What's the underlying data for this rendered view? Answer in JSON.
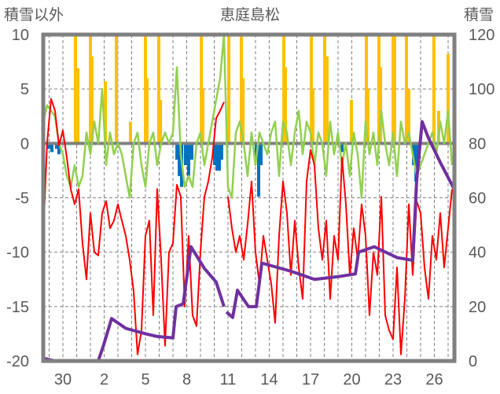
{
  "chart_data": {
    "type": "bar",
    "title": "恵庭島松",
    "ylabel_left": "積雪以外",
    "ylabel_right": "積雪",
    "ylim_left": [
      -20,
      10
    ],
    "ylim_right": [
      0,
      120
    ],
    "xlim_days": [
      -1.43,
      28.46
    ],
    "x_unit_note": "days, 0 = tick labelled 30",
    "left_ticks": [
      "10",
      "5",
      "0",
      "-5",
      "-10",
      "-15",
      "-20"
    ],
    "left_tick_values": [
      10,
      5,
      0,
      -5,
      -10,
      -15,
      -20
    ],
    "right_ticks": [
      "120",
      "100",
      "80",
      "60",
      "40",
      "20",
      "0"
    ],
    "right_tick_values": [
      120,
      100,
      80,
      60,
      40,
      20,
      0
    ],
    "x_ticks": [
      "30",
      "2",
      "5",
      "8",
      "11",
      "14",
      "17",
      "20",
      "23",
      "26"
    ],
    "x_tick_days": [
      0,
      3,
      6,
      9,
      12,
      15,
      18,
      21,
      24,
      27
    ],
    "grid": true,
    "colors": {
      "orange": "#FFC000",
      "blue": "#0070C0",
      "green": "#92D050",
      "red": "#FF0000",
      "purple": "#7030A0",
      "frame": "#808080"
    },
    "series": [
      {
        "name": "orange-bars",
        "axis": "left",
        "type": "bar",
        "points": [
          [
            0.91,
            12
          ],
          [
            1.09,
            6.9
          ],
          [
            2.0,
            12
          ],
          [
            2.11,
            8
          ],
          [
            3.09,
            5.7
          ],
          [
            3.89,
            12
          ],
          [
            4.91,
            2
          ],
          [
            6.0,
            12
          ],
          [
            6.11,
            6
          ],
          [
            6.97,
            12
          ],
          [
            7.09,
            4
          ],
          [
            10.06,
            12
          ],
          [
            10.17,
            5
          ],
          [
            12.06,
            12
          ],
          [
            12.97,
            12
          ],
          [
            13.09,
            6
          ],
          [
            16.06,
            12
          ],
          [
            16.17,
            7
          ],
          [
            18.06,
            12
          ],
          [
            18.17,
            5
          ],
          [
            19.03,
            12
          ],
          [
            19.2,
            8
          ],
          [
            20.97,
            4
          ],
          [
            22.06,
            12
          ],
          [
            22.17,
            5
          ],
          [
            22.97,
            12
          ],
          [
            23.09,
            7
          ],
          [
            24.0,
            12
          ],
          [
            24.11,
            12
          ],
          [
            24.97,
            12
          ],
          [
            25.14,
            5
          ],
          [
            26.97,
            12
          ],
          [
            27.31,
            3
          ],
          [
            28.0,
            8.2
          ]
        ]
      },
      {
        "name": "blue-bars",
        "axis": "left",
        "type": "bar",
        "points": [
          [
            -1.03,
            -0.5
          ],
          [
            -0.8,
            -0.8
          ],
          [
            -0.46,
            -0.5
          ],
          [
            -0.29,
            -1
          ],
          [
            8.29,
            -1.5
          ],
          [
            8.46,
            -3
          ],
          [
            8.63,
            -4
          ],
          [
            8.91,
            -2
          ],
          [
            9.14,
            -3
          ],
          [
            9.37,
            -1.5
          ],
          [
            11.03,
            -2
          ],
          [
            11.2,
            -2.5
          ],
          [
            11.37,
            -2.5
          ],
          [
            11.54,
            -1.5
          ],
          [
            14.06,
            -1.5
          ],
          [
            14.23,
            -4.9
          ],
          [
            14.4,
            -2
          ],
          [
            20.29,
            -0.8
          ],
          [
            25.49,
            -2
          ],
          [
            25.66,
            -3.5
          ],
          [
            25.83,
            -1
          ]
        ]
      },
      {
        "name": "green-line",
        "axis": "left",
        "type": "line",
        "x_start": -1.43,
        "x_step": 0.2857,
        "values": [
          2,
          3.5,
          3,
          2.5,
          0,
          -1,
          -3,
          -4,
          -2,
          -4,
          -3,
          1,
          -1,
          2,
          0,
          5,
          -2,
          1,
          -1,
          0,
          -1,
          -3,
          -5,
          0,
          1,
          -2,
          -4,
          0,
          1,
          -2,
          0,
          1,
          0,
          1,
          7,
          -1,
          -4,
          -3,
          -4,
          0,
          1,
          -2,
          0,
          2,
          4,
          6,
          10,
          -4,
          -5,
          1,
          2,
          0,
          -3,
          1,
          -2,
          1,
          0,
          -1,
          1,
          2,
          -3,
          2,
          1,
          -2,
          1,
          3,
          -1,
          2,
          1,
          -2,
          1,
          0,
          -3,
          2,
          -1,
          1,
          -2,
          0,
          -3,
          1,
          -1,
          -5,
          2,
          -1,
          1,
          -2,
          3,
          0,
          -2,
          1,
          -3,
          2,
          0,
          1,
          -1,
          -3,
          -2,
          -1,
          0,
          1,
          -1,
          2,
          0,
          3,
          -2
        ]
      },
      {
        "name": "red-line",
        "axis": "left",
        "type": "line",
        "x_step": 0.2857,
        "segments": [
          {
            "x_start": -1.43,
            "values": [
              -8.5,
              0.1,
              4.1,
              3.0,
              -0.2,
              1.2,
              -1.3,
              -4.2,
              -5.6,
              -4.2,
              -9.2,
              -12.5,
              -6.4,
              -10.0,
              -10.3,
              -6.4,
              -5.3,
              -7.8,
              -7.1,
              -5.6,
              -7.1,
              -8.5,
              -10.7,
              -13.6,
              -19.4,
              -17.2,
              -8.5,
              -7.1,
              -15.8,
              -4.2,
              -10.7,
              -18.6,
              -10.0,
              -9.2,
              -3.8,
              -4.9,
              -15.0,
              -8.5,
              -15.8,
              -16.8,
              -10.0,
              -4.9,
              -3.5,
              -1.3,
              2.3,
              3.0,
              3.8
            ]
          },
          {
            "x_start": 12.0,
            "values": [
              -4.9,
              -7.8,
              -10.0,
              -8.5,
              -10.7,
              -7.4,
              -3.5,
              -10.0,
              -12.9,
              -8.5,
              -10.7,
              -12.9,
              -16.5,
              -8.5,
              -3.5,
              -6.4,
              -12.1,
              -7.1,
              -11.4,
              -14.3,
              -3.5,
              -0.6,
              -2.0,
              -7.8,
              -10.7,
              -7.1,
              -14.3,
              -8.5,
              -10.7,
              -1.3,
              -5.6,
              -12.1,
              -7.8,
              -10.7,
              -5.6,
              -8.5,
              -15.8,
              -10.0,
              -12.1,
              -4.9,
              -15.8,
              -17.2,
              -18.0,
              -11.4,
              -19.4,
              -14.3,
              -5.6,
              -12.1,
              -5.3,
              -6.4,
              -11.4,
              -14.3,
              -8.5,
              -10.7,
              -6.4,
              -11.4,
              -7.8,
              -4.2
            ]
          }
        ]
      },
      {
        "name": "snow-depth-line",
        "axis": "right",
        "type": "line",
        "segments": [
          [
            [
              -1.43,
              1
            ],
            [
              -0.57,
              0
            ],
            [
              2.57,
              0
            ],
            [
              2.97,
              6
            ],
            [
              3.54,
              15.6
            ],
            [
              4.57,
              12
            ],
            [
              6.0,
              10
            ],
            [
              6.86,
              9
            ],
            [
              8.0,
              8.5
            ],
            [
              8.23,
              20
            ],
            [
              8.74,
              21
            ],
            [
              9.31,
              42
            ],
            [
              10.29,
              34
            ],
            [
              11.14,
              29
            ],
            [
              11.71,
              20
            ]
          ],
          [
            [
              11.89,
              18
            ],
            [
              12.34,
              16
            ],
            [
              12.69,
              26
            ],
            [
              13.49,
              20
            ],
            [
              14.06,
              20
            ],
            [
              14.46,
              36
            ],
            [
              16.57,
              33
            ],
            [
              18.29,
              30
            ],
            [
              20.0,
              31
            ],
            [
              21.26,
              32
            ],
            [
              21.49,
              40
            ],
            [
              22.63,
              42
            ],
            [
              24.29,
              38
            ],
            [
              25.43,
              37
            ],
            [
              25.71,
              66
            ],
            [
              26.11,
              88
            ],
            [
              26.57,
              82
            ],
            [
              27.43,
              73
            ],
            [
              28.46,
              63
            ]
          ]
        ]
      }
    ]
  }
}
